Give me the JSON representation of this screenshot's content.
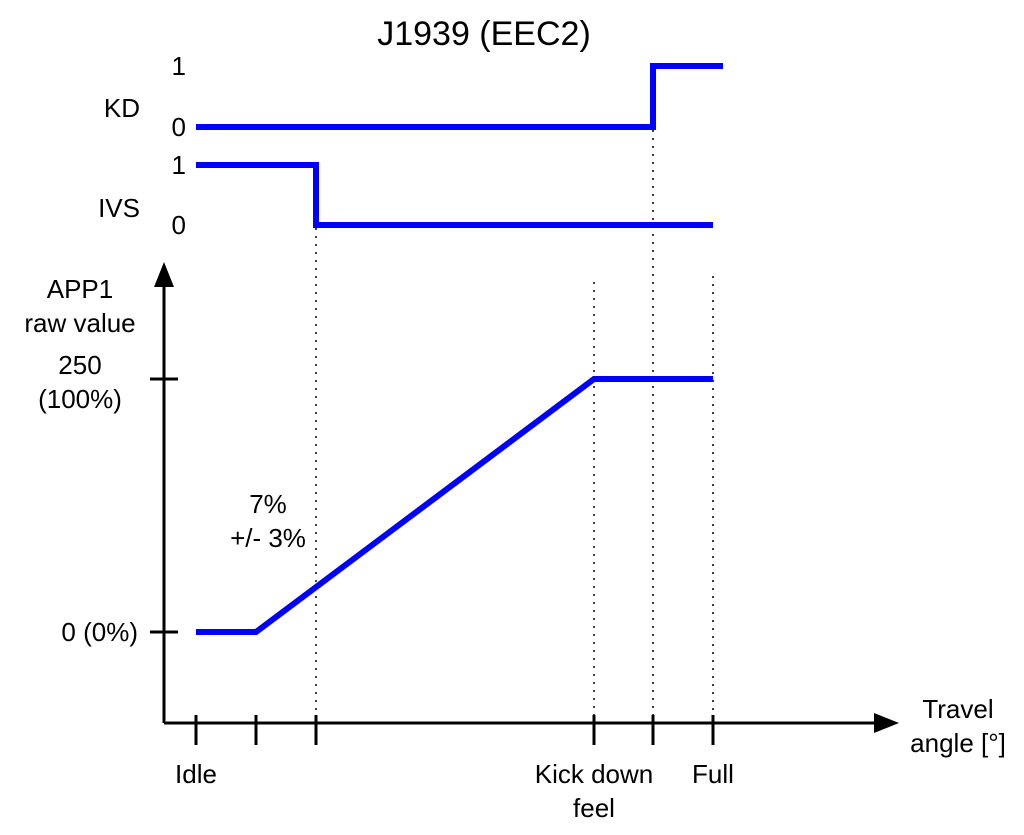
{
  "chart_data": {
    "type": "line",
    "title": "J1939 (EEC2)",
    "xlabel": [
      "Travel",
      "angle [°]"
    ],
    "ylabel": [
      "APP1",
      "raw value"
    ],
    "x_ticks": [
      {
        "label": [
          "Idle"
        ]
      },
      {
        "label": []
      },
      {
        "label": []
      },
      {
        "label": [
          "Kick down",
          "feel"
        ]
      },
      {
        "label": []
      },
      {
        "label": [
          "Full"
        ]
      }
    ],
    "y_ticks": [
      {
        "label": [
          "0 (0%)"
        ]
      },
      {
        "label": [
          "250",
          "(100%)"
        ]
      }
    ],
    "annotation": [
      "7%",
      "+/- 3%"
    ],
    "color": "#0000ff",
    "series": [
      {
        "name": "KD",
        "levels": [
          "0",
          "1"
        ],
        "points": [
          [
            0,
            0
          ],
          [
            4,
            0
          ],
          [
            4,
            1
          ],
          [
            5,
            1
          ]
        ]
      },
      {
        "name": "IVS",
        "levels": [
          "0",
          "1"
        ],
        "points": [
          [
            0,
            1
          ],
          [
            2,
            1
          ],
          [
            2,
            0
          ],
          [
            5,
            0
          ]
        ]
      },
      {
        "name": "APP1",
        "points": [
          [
            0,
            0
          ],
          [
            1,
            0
          ],
          [
            3,
            250
          ],
          [
            5,
            250
          ]
        ]
      }
    ]
  }
}
